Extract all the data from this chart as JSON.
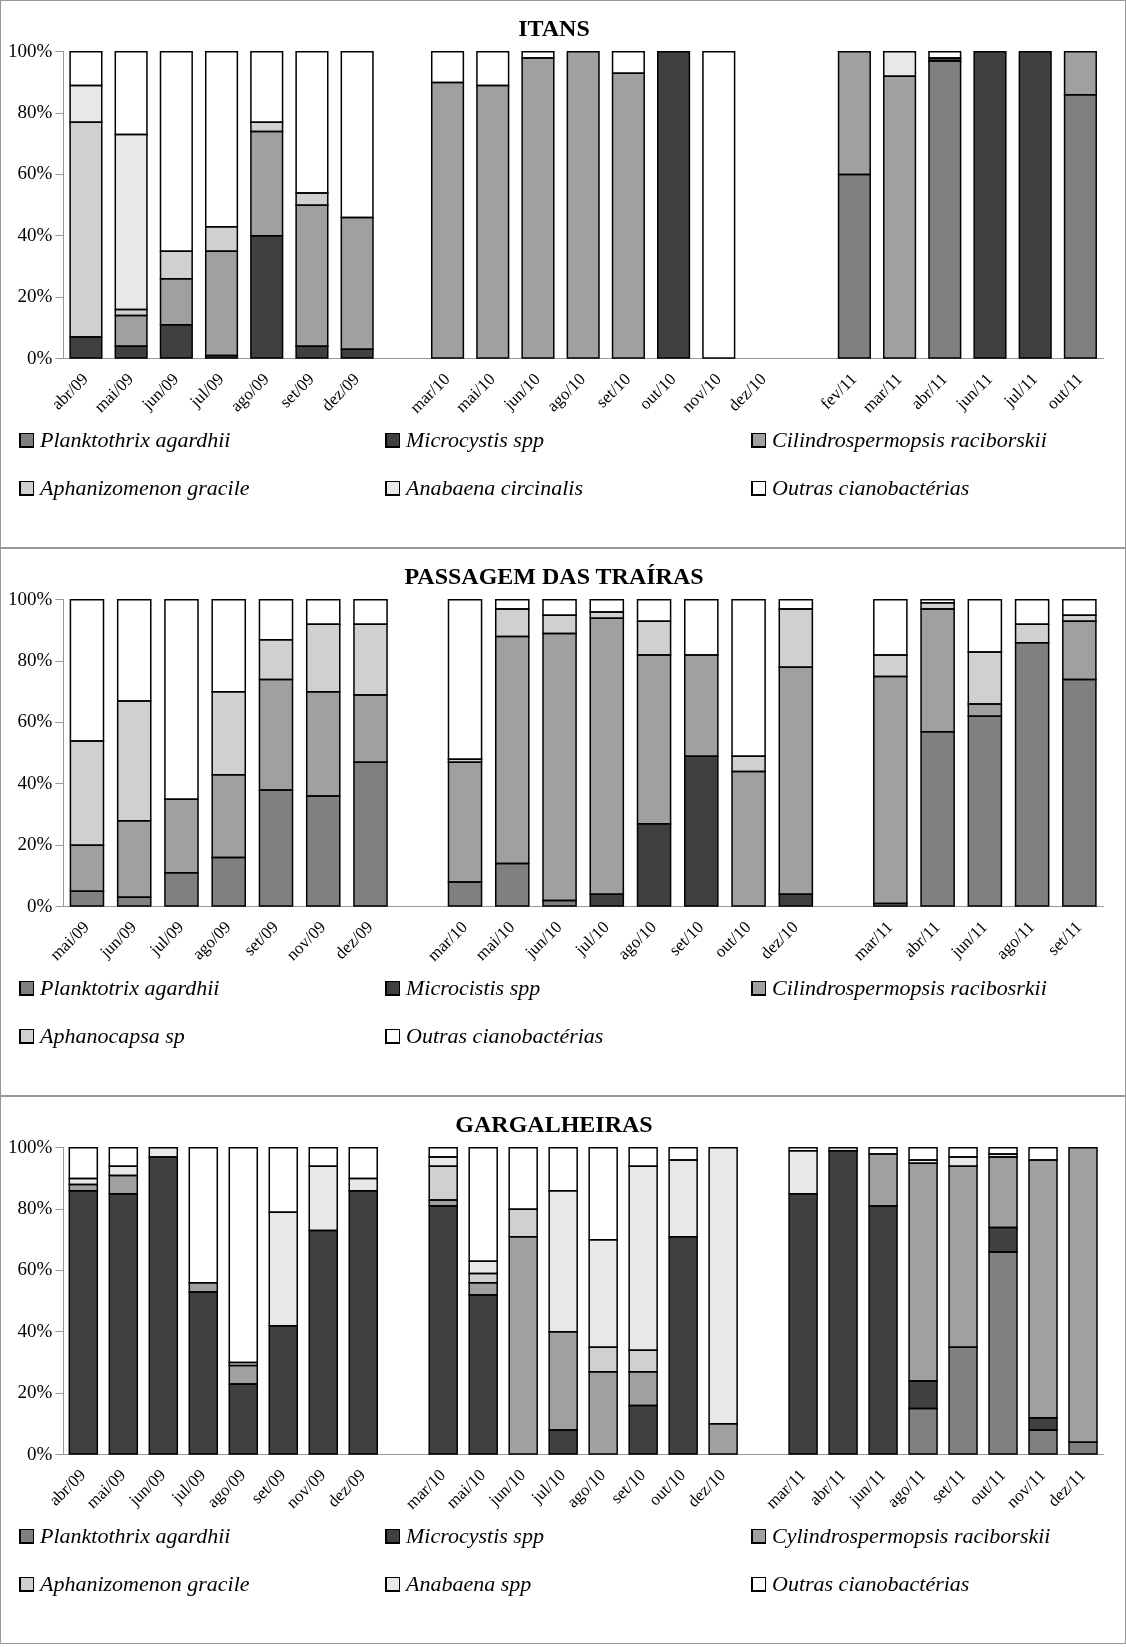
{
  "chart_data": [
    {
      "type": "bar",
      "title": "ITANS",
      "stacked": true,
      "grid": false,
      "legend": "bottom",
      "ylim": [
        0,
        100
      ],
      "yticks": [
        {
          "value": 0,
          "label": "0%"
        },
        {
          "value": 20,
          "label": "20%"
        },
        {
          "value": 40,
          "label": "40%"
        },
        {
          "value": 60,
          "label": "60%"
        },
        {
          "value": 80,
          "label": "80%"
        },
        {
          "value": 100,
          "label": "100%"
        }
      ],
      "categories": [
        "abr/09",
        "mai/09",
        "jun/09",
        "jul/09",
        "ago/09",
        "set/09",
        "dez/09",
        null,
        "mar/10",
        "mai/10",
        "jun/10",
        "ago/10",
        "set/10",
        "out/10",
        "nov/10",
        "dez/10",
        null,
        "fev/11",
        "mar/11",
        "abr/11",
        "jun/11",
        "jul/11",
        "out/11"
      ],
      "series": [
        {
          "name": "Planktothrix agardhii",
          "color": "#808080",
          "values": [
            0,
            0,
            0,
            0,
            0,
            0,
            0,
            null,
            0,
            0,
            0,
            0,
            0,
            0,
            0,
            null,
            null,
            60,
            0,
            97,
            0,
            0,
            86
          ]
        },
        {
          "name": "Microcystis spp",
          "color": "#404040",
          "values": [
            7,
            4,
            11,
            1,
            40,
            4,
            3,
            null,
            0,
            0,
            0,
            0,
            0,
            100,
            0,
            null,
            null,
            0,
            0,
            1,
            100,
            100,
            0
          ]
        },
        {
          "name": "Cilindrospermopsis raciborskii",
          "color": "#a0a0a0",
          "values": [
            0,
            10,
            15,
            34,
            34,
            46,
            43,
            null,
            90,
            89,
            98,
            100,
            93,
            0,
            0,
            null,
            null,
            40,
            92,
            0,
            0,
            0,
            14
          ]
        },
        {
          "name": "Aphanizomenon gracile",
          "color": "#d0d0d0",
          "values": [
            70,
            2,
            9,
            8,
            3,
            4,
            0,
            null,
            0,
            0,
            0,
            0,
            0,
            0,
            0,
            null,
            null,
            0,
            0,
            0,
            0,
            0,
            0
          ]
        },
        {
          "name": "Anabaena circinalis",
          "color": "#e8e8e8",
          "values": [
            12,
            57,
            0,
            0,
            0,
            0,
            0,
            null,
            0,
            0,
            0,
            0,
            0,
            0,
            0,
            null,
            null,
            0,
            8,
            0,
            0,
            0,
            0
          ]
        },
        {
          "name": "Outras cianobactérias",
          "color": "#ffffff",
          "values": [
            11,
            27,
            65,
            57,
            23,
            46,
            54,
            null,
            10,
            11,
            2,
            0,
            7,
            0,
            100,
            null,
            null,
            0,
            0,
            2,
            0,
            0,
            0
          ]
        }
      ]
    },
    {
      "type": "bar",
      "title": "PASSAGEM DAS TRAÍRAS",
      "stacked": true,
      "grid": false,
      "legend": "bottom",
      "ylim": [
        0,
        100
      ],
      "yticks": [
        {
          "value": 0,
          "label": "0%"
        },
        {
          "value": 20,
          "label": "20%"
        },
        {
          "value": 40,
          "label": "40%"
        },
        {
          "value": 60,
          "label": "60%"
        },
        {
          "value": 80,
          "label": "80%"
        },
        {
          "value": 100,
          "label": "100%"
        }
      ],
      "categories": [
        "mai/09",
        "jun/09",
        "jul/09",
        "ago/09",
        "set/09",
        "nov/09",
        "dez/09",
        null,
        "mar/10",
        "mai/10",
        "jun/10",
        "jul/10",
        "ago/10",
        "set/10",
        "out/10",
        "dez/10",
        null,
        "mar/11",
        "abr/11",
        "jun/11",
        "ago/11",
        "set/11"
      ],
      "series": [
        {
          "name": "Planktotrix agardhii",
          "color": "#808080",
          "values": [
            5,
            3,
            11,
            16,
            38,
            36,
            47,
            null,
            8,
            14,
            2,
            0,
            0,
            0,
            0,
            0,
            null,
            1,
            57,
            62,
            86,
            74
          ]
        },
        {
          "name": "Microcistis spp",
          "color": "#404040",
          "values": [
            0,
            0,
            0,
            0,
            0,
            0,
            0,
            null,
            0,
            0,
            0,
            4,
            27,
            49,
            0,
            4,
            null,
            0,
            0,
            0,
            0,
            0
          ]
        },
        {
          "name": "Cilindrospermopsis racibosrkii",
          "color": "#a0a0a0",
          "values": [
            15,
            25,
            24,
            27,
            36,
            34,
            22,
            null,
            39,
            74,
            87,
            90,
            55,
            33,
            44,
            74,
            null,
            74,
            40,
            4,
            0,
            19
          ]
        },
        {
          "name": "Aphanocapsa sp",
          "color": "#d0d0d0",
          "values": [
            34,
            39,
            0,
            27,
            13,
            22,
            23,
            null,
            1,
            9,
            6,
            2,
            11,
            0,
            5,
            19,
            null,
            7,
            2,
            17,
            6,
            2
          ]
        },
        {
          "name": "Outras cianobactérias",
          "color": "#ffffff",
          "values": [
            46,
            33,
            65,
            30,
            13,
            8,
            8,
            null,
            52,
            3,
            5,
            4,
            7,
            18,
            51,
            3,
            null,
            18,
            1,
            17,
            8,
            5
          ]
        }
      ]
    },
    {
      "type": "bar",
      "title": "GARGALHEIRAS",
      "stacked": true,
      "grid": false,
      "legend": "bottom",
      "ylim": [
        0,
        100
      ],
      "yticks": [
        {
          "value": 0,
          "label": "0%"
        },
        {
          "value": 20,
          "label": "20%"
        },
        {
          "value": 40,
          "label": "40%"
        },
        {
          "value": 60,
          "label": "60%"
        },
        {
          "value": 80,
          "label": "80%"
        },
        {
          "value": 100,
          "label": "100%"
        }
      ],
      "categories": [
        "abr/09",
        "mai/09",
        "jun/09",
        "jul/09",
        "ago/09",
        "set/09",
        "nov/09",
        "dez/09",
        null,
        "mar/10",
        "mai/10",
        "jun/10",
        "jul/10",
        "ago/10",
        "set/10",
        "out/10",
        "dez/10",
        null,
        "mar/11",
        "abr/11",
        "jun/11",
        "ago/11",
        "set/11",
        "out/11",
        "nov/11",
        "dez/11"
      ],
      "series": [
        {
          "name": "Planktothrix agardhii",
          "color": "#808080",
          "values": [
            0,
            0,
            0,
            0,
            0,
            0,
            0,
            0,
            null,
            0,
            0,
            0,
            0,
            0,
            0,
            0,
            0,
            null,
            0,
            0,
            0,
            15,
            35,
            66,
            8,
            4
          ]
        },
        {
          "name": "Microcystis spp",
          "color": "#404040",
          "values": [
            86,
            85,
            97,
            53,
            23,
            42,
            73,
            86,
            null,
            81,
            52,
            0,
            8,
            0,
            16,
            71,
            0,
            null,
            85,
            99,
            81,
            9,
            0,
            8,
            4,
            0
          ]
        },
        {
          "name": "Cylindrospermopsis raciborskii",
          "color": "#a0a0a0",
          "values": [
            2,
            6,
            0,
            3,
            6,
            0,
            0,
            0,
            null,
            2,
            4,
            71,
            32,
            27,
            11,
            0,
            10,
            null,
            0,
            0,
            17,
            71,
            59,
            23,
            84,
            96
          ]
        },
        {
          "name": "Aphanizomenon gracile",
          "color": "#d0d0d0",
          "values": [
            0,
            0,
            0,
            0,
            0,
            0,
            0,
            0,
            null,
            11,
            3,
            9,
            0,
            8,
            7,
            0,
            0,
            null,
            0,
            0,
            0,
            0,
            0,
            0,
            0,
            0
          ]
        },
        {
          "name": "Anabaena spp",
          "color": "#e8e8e8",
          "values": [
            2,
            3,
            3,
            0,
            1,
            37,
            21,
            4,
            null,
            3,
            4,
            0,
            46,
            35,
            60,
            25,
            90,
            null,
            14,
            1,
            0,
            1,
            3,
            1,
            0,
            0
          ]
        },
        {
          "name": "Outras cianobactérias",
          "color": "#ffffff",
          "values": [
            10,
            6,
            0,
            44,
            70,
            21,
            6,
            10,
            null,
            3,
            37,
            20,
            14,
            30,
            6,
            4,
            0,
            null,
            1,
            0,
            2,
            4,
            3,
            2,
            4,
            0
          ]
        }
      ]
    }
  ]
}
